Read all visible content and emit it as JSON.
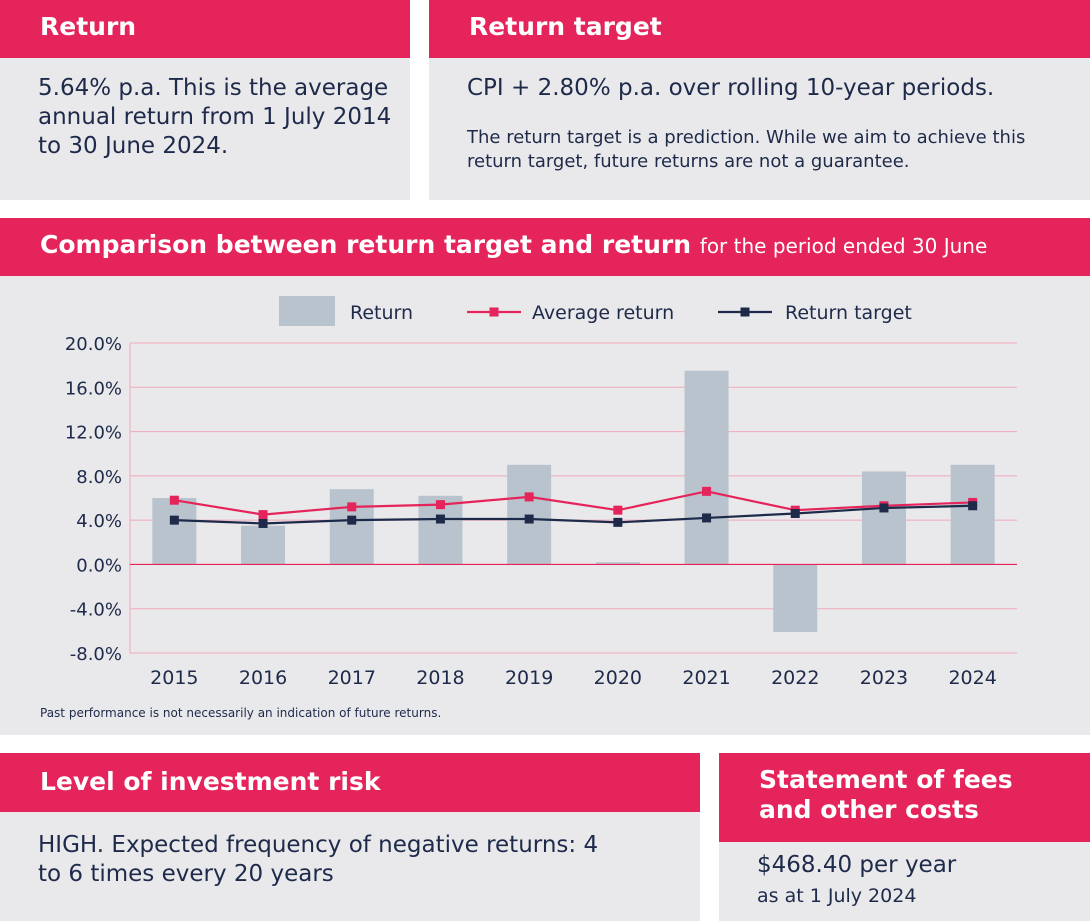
{
  "return_panel": {
    "heading": "Return",
    "body": "5.64% p.a. This is the average annual return from 1 July 2014 to 30 June 2024."
  },
  "target_panel": {
    "heading": "Return target",
    "body": "CPI + 2.80% p.a. over rolling 10-year periods.",
    "note": "The return target is a prediction. While we aim to achieve this return target, future returns are not a guarantee."
  },
  "chart_panel": {
    "heading": "Comparison between return target and return",
    "subheading": "for the period ended 30 June",
    "footnote": "Past performance is not necessarily an indication of future returns."
  },
  "risk_panel": {
    "heading": "Level of investment risk",
    "body": "HIGH. Expected frequency of negative returns: 4 to 6 times every 20 years"
  },
  "fees_panel": {
    "heading": "Statement of fees and other costs",
    "amount": "$468.40 per year",
    "as_at": "as at 1 July 2024"
  },
  "colors": {
    "accent": "#e5245b",
    "navy": "#1e2a4a",
    "bar": "#b9c3cd",
    "panel_bg": "#e9e9eb"
  },
  "chart_data": {
    "type": "bar",
    "title": "Comparison between return target and return",
    "subtitle": "for the period ended 30 June",
    "categories": [
      "2015",
      "2016",
      "2017",
      "2018",
      "2019",
      "2020",
      "2021",
      "2022",
      "2023",
      "2024"
    ],
    "series": [
      {
        "name": "Return",
        "type": "bar",
        "values": [
          6.0,
          3.5,
          6.8,
          6.2,
          9.0,
          0.2,
          17.5,
          -6.1,
          8.4,
          9.0
        ]
      },
      {
        "name": "Average return",
        "type": "line",
        "values": [
          5.8,
          4.5,
          5.2,
          5.4,
          6.1,
          4.9,
          6.6,
          4.9,
          5.3,
          5.6
        ]
      },
      {
        "name": "Return target",
        "type": "line",
        "values": [
          4.0,
          3.7,
          4.0,
          4.1,
          4.1,
          3.8,
          4.2,
          4.6,
          5.1,
          5.3
        ]
      }
    ],
    "ylim": [
      -8,
      20
    ],
    "yticks": [
      20,
      16,
      12,
      8,
      4,
      0,
      -4,
      -8
    ],
    "ytick_labels": [
      "20.0%",
      "16.0%",
      "12.0%",
      "8.0%",
      "4.0%",
      "0.0%",
      "-4.0%",
      "-8.0%"
    ],
    "xlabel": "",
    "ylabel": "",
    "legend": [
      "Return",
      "Average return",
      "Return target"
    ],
    "legend_position": "top-center",
    "grid": true
  }
}
